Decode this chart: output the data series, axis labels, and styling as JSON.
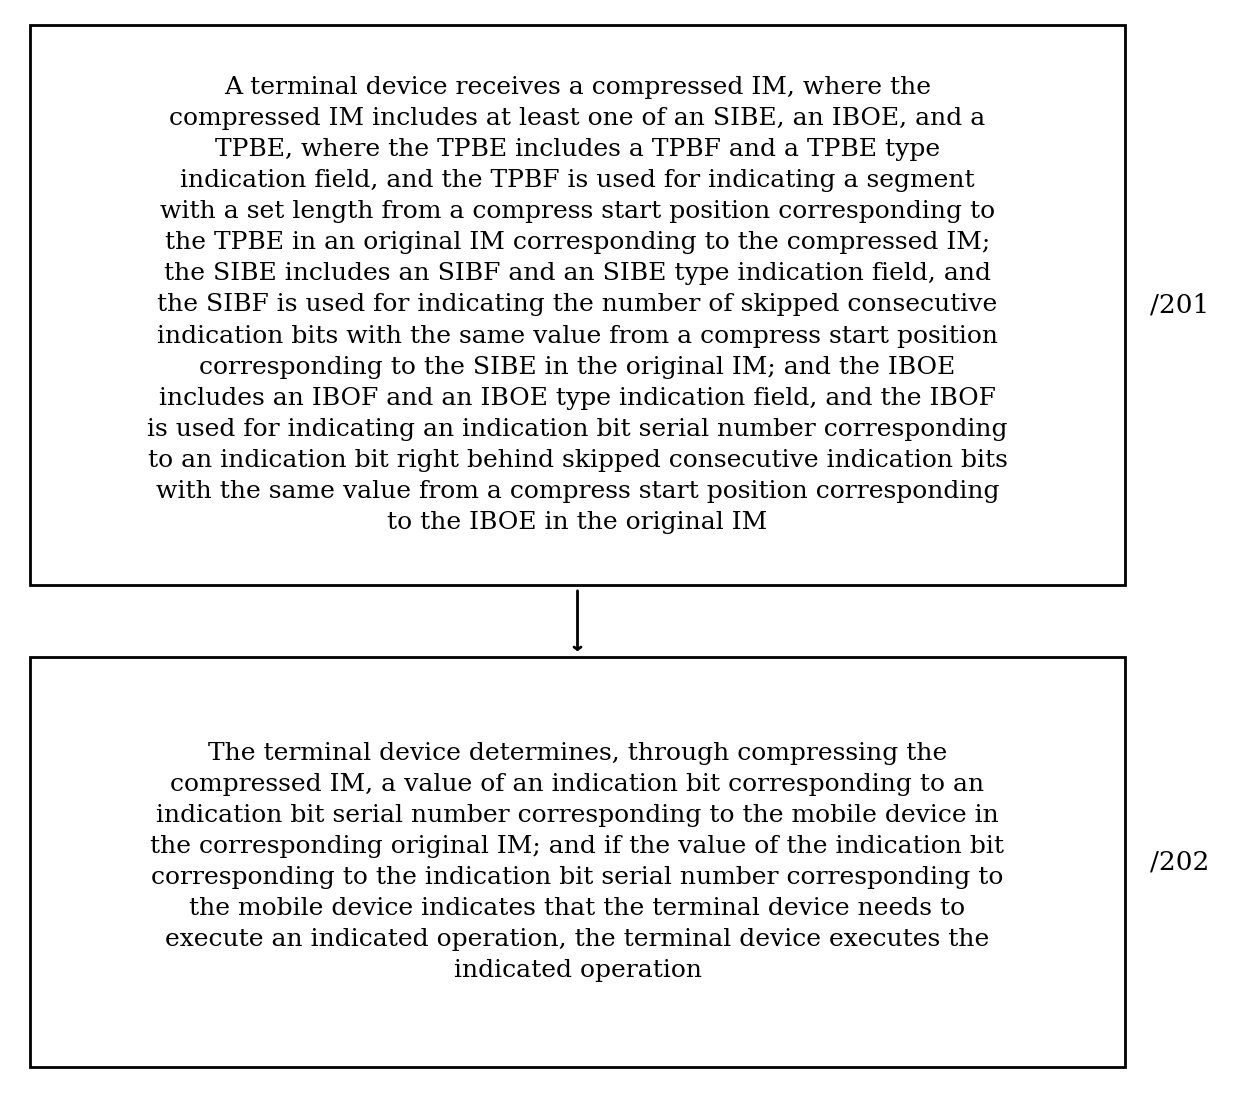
{
  "background_color": "#ffffff",
  "box1_text": "A terminal device receives a compressed IM, where the\ncompressed IM includes at least one of an SIBE, an IBOE, and a\nTPBE, where the TPBE includes a TPBF and a TPBE type\nindication field, and the TPBF is used for indicating a segment\nwith a set length from a compress start position corresponding to\nthe TPBE in an original IM corresponding to the compressed IM;\nthe SIBE includes an SIBF and an SIBE type indication field, and\nthe SIBF is used for indicating the number of skipped consecutive\nindication bits with the same value from a compress start position\ncorresponding to the SIBE in the original IM; and the IBOE\nincludes an IBOF and an IBOE type indication field, and the IBOF\nis used for indicating an indication bit serial number corresponding\nto an indication bit right behind skipped consecutive indication bits\nwith the same value from a compress start position corresponding\nto the IBOE in the original IM",
  "box1_label": "201",
  "box2_text": "The terminal device determines, through compressing the\ncompressed IM, a value of an indication bit corresponding to an\nindication bit serial number corresponding to the mobile device in\nthe corresponding original IM; and if the value of the indication bit\ncorresponding to the indication bit serial number corresponding to\nthe mobile device indicates that the terminal device needs to\nexecute an indicated operation, the terminal device executes the\nindicated operation",
  "box2_label": "202",
  "font_size": 18,
  "label_font_size": 19,
  "box_edge_color": "#000000",
  "box_face_color": "#ffffff",
  "text_color": "#000000",
  "arrow_color": "#000000",
  "line_width": 2.0,
  "fig_width": 12.4,
  "fig_height": 10.98,
  "dpi": 100
}
